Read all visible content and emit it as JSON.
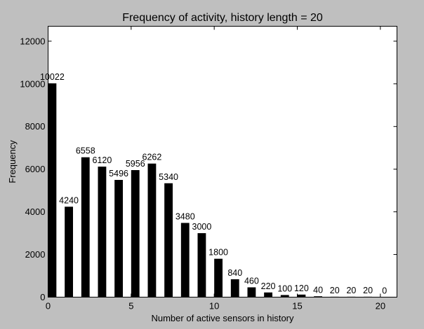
{
  "chart_data": {
    "type": "bar",
    "title": "Frequency of activity, history length = 20",
    "xlabel": "Number of active sensors in history",
    "ylabel": "Frequency",
    "x": [
      0,
      1,
      2,
      3,
      4,
      5,
      6,
      7,
      8,
      9,
      10,
      11,
      12,
      13,
      14,
      15,
      16,
      17,
      18,
      19,
      20
    ],
    "values": [
      10022,
      4240,
      6558,
      6120,
      5496,
      5956,
      6262,
      5340,
      3480,
      3000,
      1800,
      840,
      460,
      220,
      100,
      120,
      40,
      20,
      20,
      20,
      0
    ],
    "xlim": [
      0,
      21
    ],
    "ylim": [
      0,
      12700
    ],
    "xticks": [
      0,
      5,
      10,
      15,
      20
    ],
    "yticks": [
      0,
      2000,
      4000,
      6000,
      8000,
      10000,
      12000
    ],
    "bar_color": "#000000",
    "grid": false
  }
}
